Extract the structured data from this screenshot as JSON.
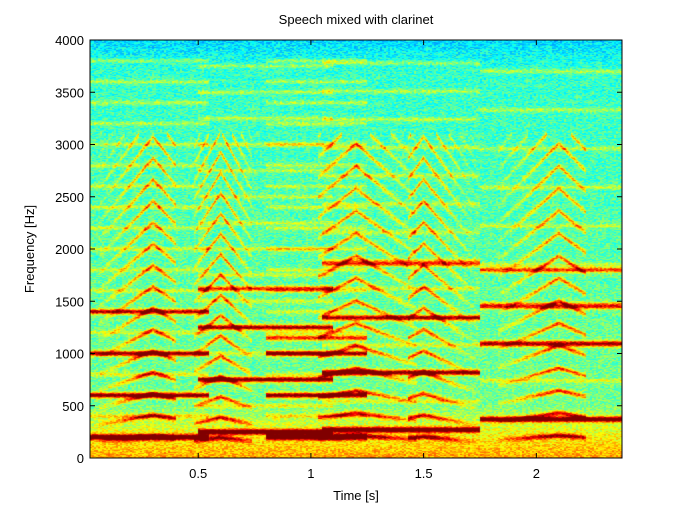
{
  "chart_data": {
    "type": "heatmap",
    "title": "Speech mixed with clarinet",
    "xlabel": "Time [s]",
    "ylabel": "Frequency [Hz]",
    "xlim": [
      0.02,
      2.38
    ],
    "ylim": [
      0,
      4000
    ],
    "xticks": [
      0.5,
      1,
      1.5,
      2
    ],
    "xtick_labels": [
      "0.5",
      "1",
      "1.5",
      "2"
    ],
    "yticks": [
      0,
      500,
      1000,
      1500,
      2000,
      2500,
      3000,
      3500,
      4000
    ],
    "ytick_labels": [
      "0",
      "500",
      "1000",
      "1500",
      "2000",
      "2500",
      "3000",
      "3500",
      "4000"
    ],
    "colormap": "jet",
    "grid": false,
    "clarinet_notes": [
      {
        "t_start": 0.02,
        "t_end": 0.55,
        "f0": 200,
        "harmonics": [
          200,
          600,
          1000,
          1400
        ]
      },
      {
        "t_start": 0.5,
        "t_end": 1.1,
        "f0": 250,
        "harmonics": [
          250,
          750,
          1250,
          1620
        ]
      },
      {
        "t_start": 0.8,
        "t_end": 1.25,
        "f0": 200,
        "harmonics": [
          200,
          600,
          1000,
          1150
        ]
      },
      {
        "t_start": 1.05,
        "t_end": 1.75,
        "f0": 270,
        "harmonics": [
          270,
          820,
          1340,
          1860
        ]
      },
      {
        "t_start": 1.75,
        "t_end": 2.38,
        "f0": 370,
        "harmonics": [
          370,
          1090,
          1450,
          1800
        ]
      }
    ],
    "speech_segments": [
      {
        "t_start": 0.08,
        "t_end": 0.38,
        "f0": 150,
        "peak_time": 0.3
      },
      {
        "t_start": 0.5,
        "t_end": 0.72,
        "f0": 140,
        "peak_time": 0.6
      },
      {
        "t_start": 1.05,
        "t_end": 1.45,
        "f0": 160,
        "peak_time": 1.2
      },
      {
        "t_start": 1.45,
        "t_end": 1.72,
        "f0": 150,
        "peak_time": 1.5
      },
      {
        "t_start": 1.85,
        "t_end": 2.2,
        "f0": 160,
        "peak_time": 2.1
      }
    ]
  }
}
